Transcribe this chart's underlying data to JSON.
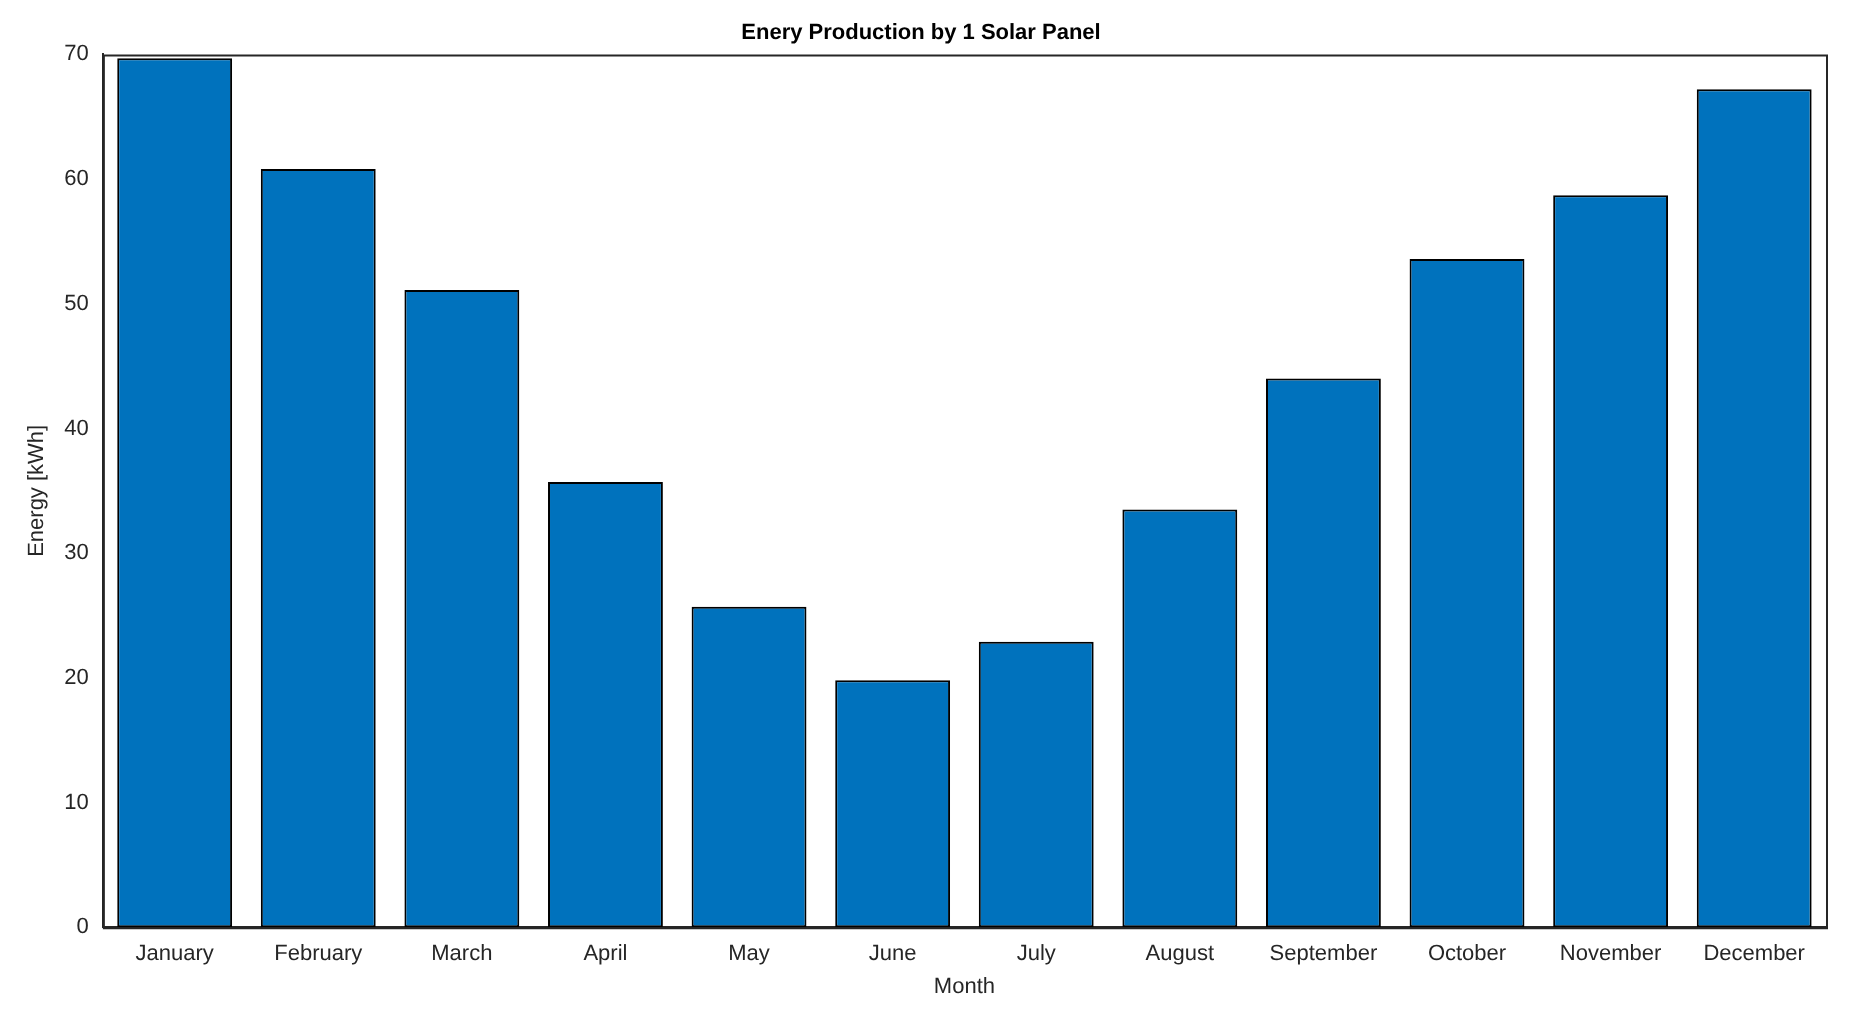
{
  "chart_data": {
    "type": "bar",
    "title": "Enery Production by 1 Solar Panel",
    "xlabel": "Month",
    "ylabel": "Energy [kWh]",
    "categories": [
      "January",
      "February",
      "March",
      "April",
      "May",
      "June",
      "July",
      "August",
      "September",
      "October",
      "November",
      "December"
    ],
    "values": [
      69.7,
      60.8,
      51.1,
      35.7,
      25.7,
      19.8,
      22.9,
      33.5,
      44.0,
      53.6,
      58.7,
      67.2
    ],
    "color": "#0072bd",
    "ylim": [
      0,
      70
    ],
    "yticks": [
      0,
      10,
      20,
      30,
      40,
      50,
      60,
      70
    ],
    "grid": false,
    "legend": false
  }
}
